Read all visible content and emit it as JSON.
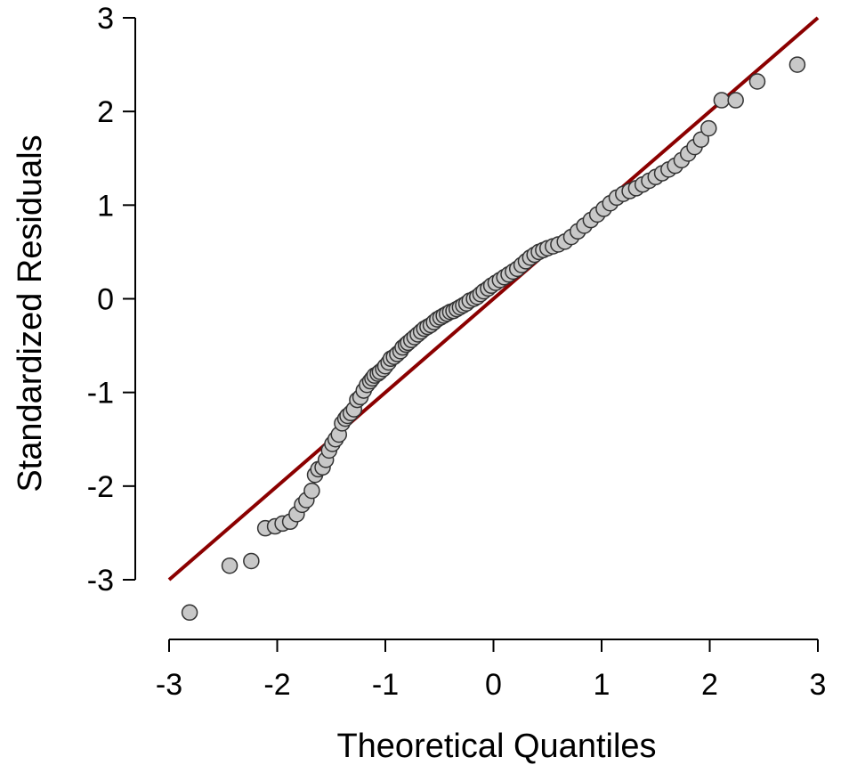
{
  "chart_data": {
    "type": "scatter",
    "title": "",
    "xlabel": "Theoretical Quantiles",
    "ylabel": "Standardized Residuals",
    "xlim": [
      -3,
      3
    ],
    "ylim": [
      -3,
      3
    ],
    "xticks": [
      -3,
      -2,
      -1,
      0,
      1,
      2,
      3
    ],
    "yticks": [
      -3,
      -2,
      -1,
      0,
      1,
      2,
      3
    ],
    "xtick_labels": [
      "-3",
      "-2",
      "-1",
      "0",
      "1",
      "2",
      "3"
    ],
    "ytick_labels": [
      "-3",
      "-2",
      "-1",
      "0",
      "1",
      "2",
      "3"
    ],
    "grid": false,
    "reference_line": {
      "x": [
        -3,
        3
      ],
      "y": [
        -3,
        3
      ],
      "color": "#8b0000"
    },
    "point_fill": "#c8c8c8",
    "point_stroke": "#333333",
    "series": [
      {
        "x": [
          -2.81,
          -2.44,
          -2.24,
          -2.11,
          -2.02,
          -1.95,
          -1.88,
          -1.82,
          -1.77,
          -1.73,
          -1.68,
          -1.65,
          -1.62,
          -1.58,
          -1.55,
          -1.52,
          -1.49,
          -1.46,
          -1.43,
          -1.4,
          -1.37,
          -1.35,
          -1.32,
          -1.29,
          -1.26,
          -1.23,
          -1.2,
          -1.17,
          -1.14,
          -1.12,
          -1.1,
          -1.07,
          -1.05,
          -1.02,
          -1.0,
          -0.97,
          -0.95,
          -0.92,
          -0.89,
          -0.86,
          -0.84,
          -0.81,
          -0.79,
          -0.76,
          -0.73,
          -0.7,
          -0.67,
          -0.64,
          -0.61,
          -0.58,
          -0.55,
          -0.52,
          -0.49,
          -0.46,
          -0.43,
          -0.4,
          -0.37,
          -0.34,
          -0.31,
          -0.28,
          -0.25,
          -0.22,
          -0.18,
          -0.15,
          -0.12,
          -0.09,
          -0.05,
          -0.02,
          0.02,
          0.06,
          0.1,
          0.14,
          0.18,
          0.22,
          0.26,
          0.3,
          0.34,
          0.38,
          0.42,
          0.46,
          0.5,
          0.55,
          0.6,
          0.66,
          0.72,
          0.78,
          0.84,
          0.9,
          0.96,
          1.02,
          1.08,
          1.14,
          1.2,
          1.26,
          1.32,
          1.38,
          1.44,
          1.5,
          1.56,
          1.62,
          1.68,
          1.74,
          1.8,
          1.86,
          1.92,
          1.99,
          2.11,
          2.24,
          2.44,
          2.81
        ],
        "y": [
          -3.35,
          -2.85,
          -2.8,
          -2.45,
          -2.43,
          -2.4,
          -2.38,
          -2.3,
          -2.2,
          -2.15,
          -2.05,
          -1.88,
          -1.82,
          -1.8,
          -1.72,
          -1.62,
          -1.55,
          -1.5,
          -1.45,
          -1.33,
          -1.28,
          -1.25,
          -1.22,
          -1.18,
          -1.08,
          -1.05,
          -0.98,
          -0.92,
          -0.88,
          -0.85,
          -0.82,
          -0.8,
          -0.78,
          -0.75,
          -0.72,
          -0.68,
          -0.64,
          -0.62,
          -0.59,
          -0.56,
          -0.52,
          -0.49,
          -0.47,
          -0.44,
          -0.41,
          -0.38,
          -0.35,
          -0.32,
          -0.3,
          -0.28,
          -0.25,
          -0.22,
          -0.2,
          -0.18,
          -0.16,
          -0.14,
          -0.13,
          -0.11,
          -0.09,
          -0.07,
          -0.05,
          -0.02,
          0.0,
          0.02,
          0.05,
          0.08,
          0.11,
          0.14,
          0.17,
          0.2,
          0.23,
          0.26,
          0.29,
          0.32,
          0.36,
          0.4,
          0.44,
          0.47,
          0.5,
          0.52,
          0.54,
          0.56,
          0.58,
          0.61,
          0.66,
          0.72,
          0.78,
          0.84,
          0.9,
          0.96,
          1.02,
          1.08,
          1.12,
          1.15,
          1.18,
          1.22,
          1.26,
          1.3,
          1.34,
          1.38,
          1.42,
          1.48,
          1.55,
          1.62,
          1.7,
          1.82,
          2.12,
          2.12,
          2.32,
          2.5
        ]
      }
    ]
  }
}
